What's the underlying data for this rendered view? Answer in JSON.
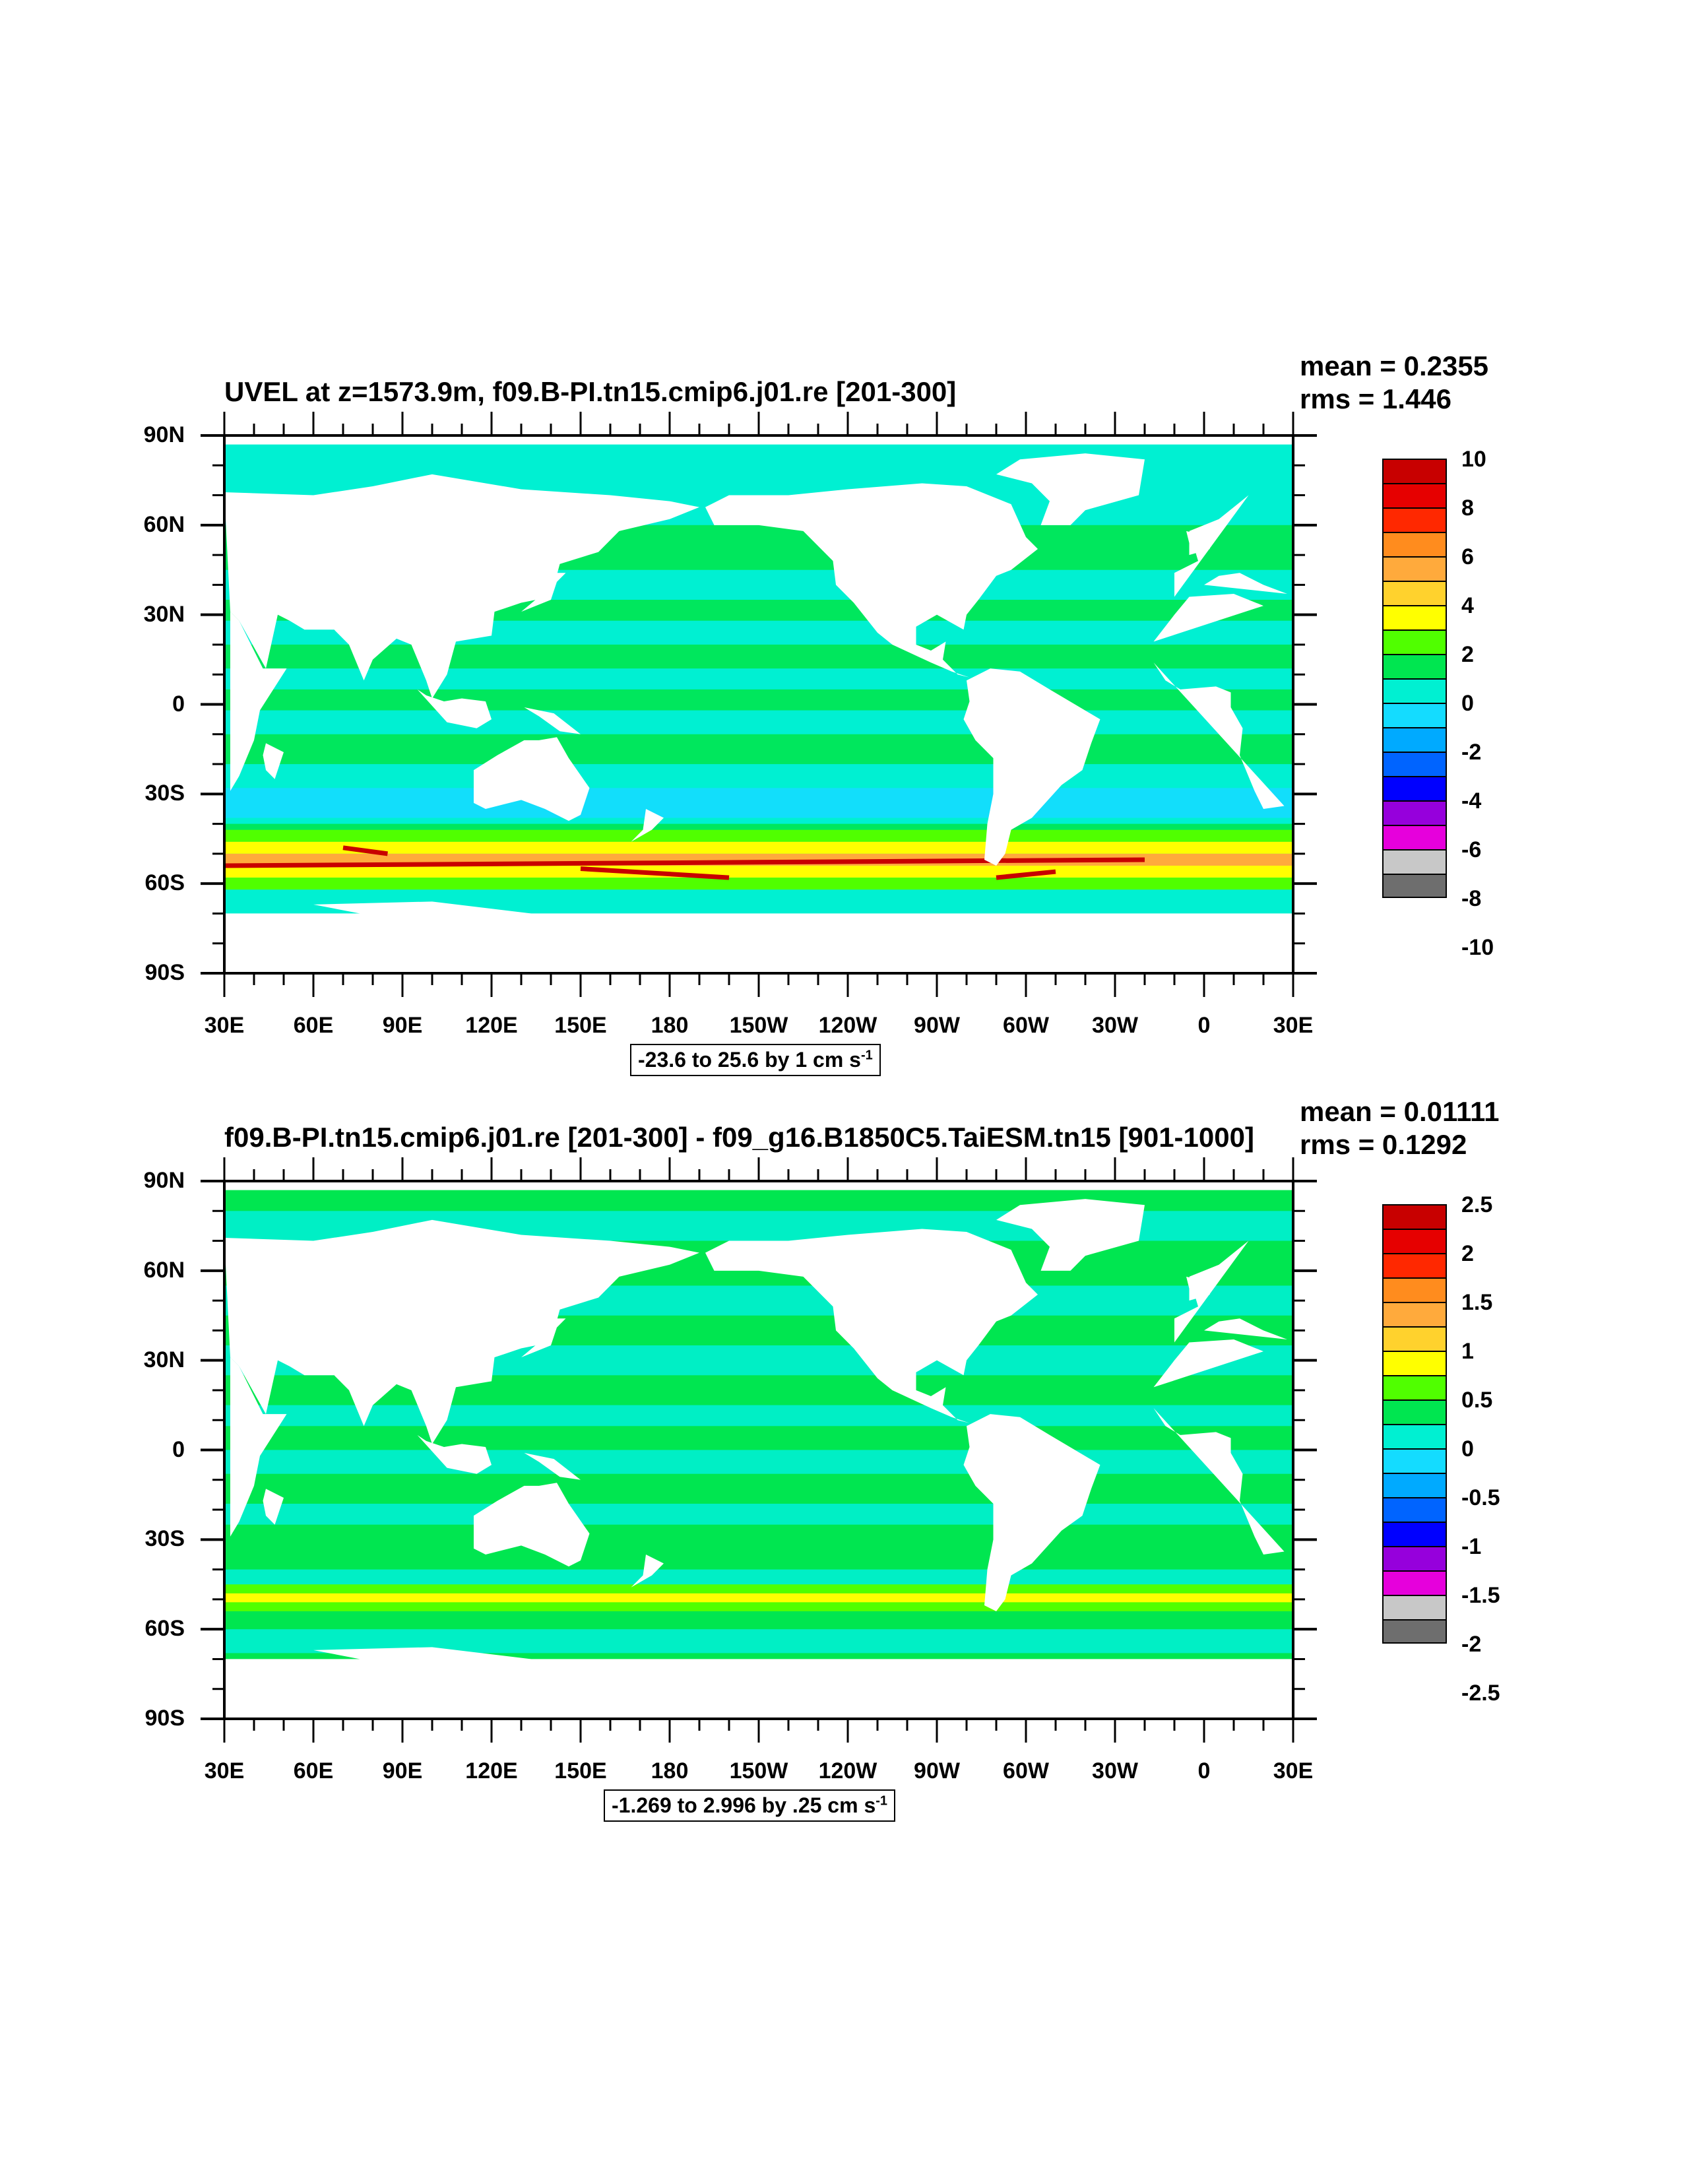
{
  "panels": [
    {
      "id": "top",
      "title": "UVEL at z=1573.9m, f09.B-PI.tn15.cmip6.j01.re [201-300]",
      "mean": "mean = 0.2355",
      "rms": "rms = 1.446",
      "info_text": "-23.6 to 25.6 by 1 cm s",
      "info_sup": "-1",
      "colorbar_labels": [
        "10",
        "8",
        "6",
        "4",
        "2",
        "0",
        "-2",
        "-4",
        "-6",
        "-8",
        "-10"
      ]
    },
    {
      "id": "bottom",
      "title": "f09.B-PI.tn15.cmip6.j01.re [201-300] - f09_g16.B1850C5.TaiESM.tn15 [901-1000]",
      "mean": "mean = 0.01111",
      "rms": "rms = 0.1292",
      "info_text": "-1.269 to 2.996 by .25 cm s",
      "info_sup": "-1",
      "colorbar_labels": [
        "2.5",
        "2",
        "1.5",
        "1",
        "0.5",
        "0",
        "-0.5",
        "-1",
        "-1.5",
        "-2",
        "-2.5"
      ]
    }
  ],
  "y_ticks": [
    "90N",
    "60N",
    "30N",
    "0",
    "30S",
    "60S",
    "90S"
  ],
  "x_ticks": [
    "30E",
    "60E",
    "90E",
    "120E",
    "150E",
    "180",
    "150W",
    "120W",
    "90W",
    "60W",
    "30W",
    "0",
    "30E"
  ],
  "colorbar_colors": [
    "#c80000",
    "#e60000",
    "#ff2800",
    "#ff8c1e",
    "#ffaa3c",
    "#ffd22d",
    "#ffff00",
    "#50ff00",
    "#00e650",
    "#00f0d2",
    "#14dcff",
    "#00aaff",
    "#0064ff",
    "#0000ff",
    "#9600dc",
    "#e600dc",
    "#c8c8c8",
    "#6e6e6e"
  ],
  "map_colors": {
    "land": "#ffffff",
    "cyan": "#00f0d2",
    "light_cyan": "#14dcff",
    "green": "#00e650",
    "lime": "#50ff00",
    "yellow": "#ffff00",
    "orange": "#ffaa3c",
    "red": "#c80000",
    "blue": "#0064ff"
  }
}
